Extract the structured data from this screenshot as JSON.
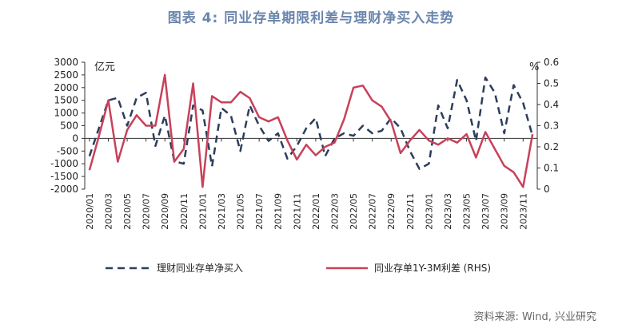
{
  "title": "图表 4:  同业存单期限利差与理财净买入走势",
  "source": "资料来源: Wind, 兴业研究",
  "chart_data": {
    "type": "line",
    "left_unit": "亿元",
    "right_unit": "%",
    "left_ylim": [
      -2000,
      3000
    ],
    "right_ylim": [
      0,
      0.6
    ],
    "left_ticks": [
      -2000,
      -1500,
      -1000,
      -500,
      0,
      500,
      1000,
      1500,
      2000,
      2500,
      3000
    ],
    "right_ticks": [
      0,
      0.1,
      0.2,
      0.3,
      0.4,
      0.5,
      0.6
    ],
    "x_tick_labels": [
      "2020/01",
      "2020/03",
      "2020/05",
      "2020/07",
      "2020/09",
      "2020/11",
      "2021/01",
      "2021/03",
      "2021/05",
      "2021/07",
      "2021/09",
      "2021/11",
      "2022/01",
      "2022/03",
      "2022/05",
      "2022/07",
      "2022/09",
      "2022/11",
      "2023/01",
      "2023/03",
      "2023/05",
      "2023/07",
      "2023/09",
      "2023/11"
    ],
    "grid": false,
    "legend_position": "bottom",
    "series": [
      {
        "name": "理财同业存单净买入",
        "axis": "left",
        "color": "#2c3e5c",
        "style": "dashed",
        "points": [
          [
            "2020/01",
            -700
          ],
          [
            "2020/02",
            400
          ],
          [
            "2020/03",
            1500
          ],
          [
            "2020/04",
            1600
          ],
          [
            "2020/05",
            500
          ],
          [
            "2020/06",
            1600
          ],
          [
            "2020/07",
            1800
          ],
          [
            "2020/08",
            -300
          ],
          [
            "2020/09",
            900
          ],
          [
            "2020/10",
            -900
          ],
          [
            "2020/11",
            -1000
          ],
          [
            "2020/12",
            1300
          ],
          [
            "2021/01",
            1100
          ],
          [
            "2021/02",
            -1100
          ],
          [
            "2021/03",
            1200
          ],
          [
            "2021/04",
            900
          ],
          [
            "2021/05",
            -500
          ],
          [
            "2021/06",
            1300
          ],
          [
            "2021/07",
            500
          ],
          [
            "2021/08",
            -100
          ],
          [
            "2021/09",
            200
          ],
          [
            "2021/10",
            -800
          ],
          [
            "2021/11",
            -300
          ],
          [
            "2021/12",
            400
          ],
          [
            "2022/01",
            800
          ],
          [
            "2022/02",
            -700
          ],
          [
            "2022/03",
            0
          ],
          [
            "2022/04",
            200
          ],
          [
            "2022/05",
            100
          ],
          [
            "2022/06",
            500
          ],
          [
            "2022/07",
            200
          ],
          [
            "2022/08",
            300
          ],
          [
            "2022/09",
            800
          ],
          [
            "2022/10",
            400
          ],
          [
            "2022/11",
            -500
          ],
          [
            "2022/12",
            -1200
          ],
          [
            "2023/01",
            -1000
          ],
          [
            "2023/02",
            1300
          ],
          [
            "2023/03",
            400
          ],
          [
            "2023/04",
            2300
          ],
          [
            "2023/05",
            1500
          ],
          [
            "2023/06",
            -100
          ],
          [
            "2023/07",
            2400
          ],
          [
            "2023/08",
            1800
          ],
          [
            "2023/09",
            200
          ],
          [
            "2023/10",
            2100
          ],
          [
            "2023/11",
            1400
          ],
          [
            "2023/12",
            100
          ]
        ]
      },
      {
        "name": "同业存单1Y-3M利差 (RHS)",
        "axis": "right",
        "color": "#c8415a",
        "style": "solid",
        "points": [
          [
            "2020/01",
            0.09
          ],
          [
            "2020/02",
            0.25
          ],
          [
            "2020/03",
            0.42
          ],
          [
            "2020/04",
            0.13
          ],
          [
            "2020/05",
            0.28
          ],
          [
            "2020/06",
            0.35
          ],
          [
            "2020/07",
            0.3
          ],
          [
            "2020/08",
            0.3
          ],
          [
            "2020/09",
            0.54
          ],
          [
            "2020/10",
            0.13
          ],
          [
            "2020/11",
            0.19
          ],
          [
            "2020/12",
            0.5
          ],
          [
            "2021/01",
            0.01
          ],
          [
            "2021/02",
            0.44
          ],
          [
            "2021/03",
            0.41
          ],
          [
            "2021/04",
            0.41
          ],
          [
            "2021/05",
            0.46
          ],
          [
            "2021/06",
            0.43
          ],
          [
            "2021/07",
            0.34
          ],
          [
            "2021/08",
            0.32
          ],
          [
            "2021/09",
            0.34
          ],
          [
            "2021/10",
            0.23
          ],
          [
            "2021/11",
            0.14
          ],
          [
            "2021/12",
            0.21
          ],
          [
            "2022/01",
            0.16
          ],
          [
            "2022/02",
            0.2
          ],
          [
            "2022/03",
            0.22
          ],
          [
            "2022/04",
            0.33
          ],
          [
            "2022/05",
            0.48
          ],
          [
            "2022/06",
            0.49
          ],
          [
            "2022/07",
            0.42
          ],
          [
            "2022/08",
            0.39
          ],
          [
            "2022/09",
            0.32
          ],
          [
            "2022/10",
            0.17
          ],
          [
            "2022/11",
            0.23
          ],
          [
            "2022/12",
            0.28
          ],
          [
            "2023/01",
            0.23
          ],
          [
            "2023/02",
            0.21
          ],
          [
            "2023/03",
            0.24
          ],
          [
            "2023/04",
            0.22
          ],
          [
            "2023/05",
            0.26
          ],
          [
            "2023/06",
            0.15
          ],
          [
            "2023/07",
            0.27
          ],
          [
            "2023/08",
            0.19
          ],
          [
            "2023/09",
            0.11
          ],
          [
            "2023/10",
            0.08
          ],
          [
            "2023/11",
            0.01
          ],
          [
            "2023/12",
            0.26
          ]
        ]
      }
    ]
  }
}
